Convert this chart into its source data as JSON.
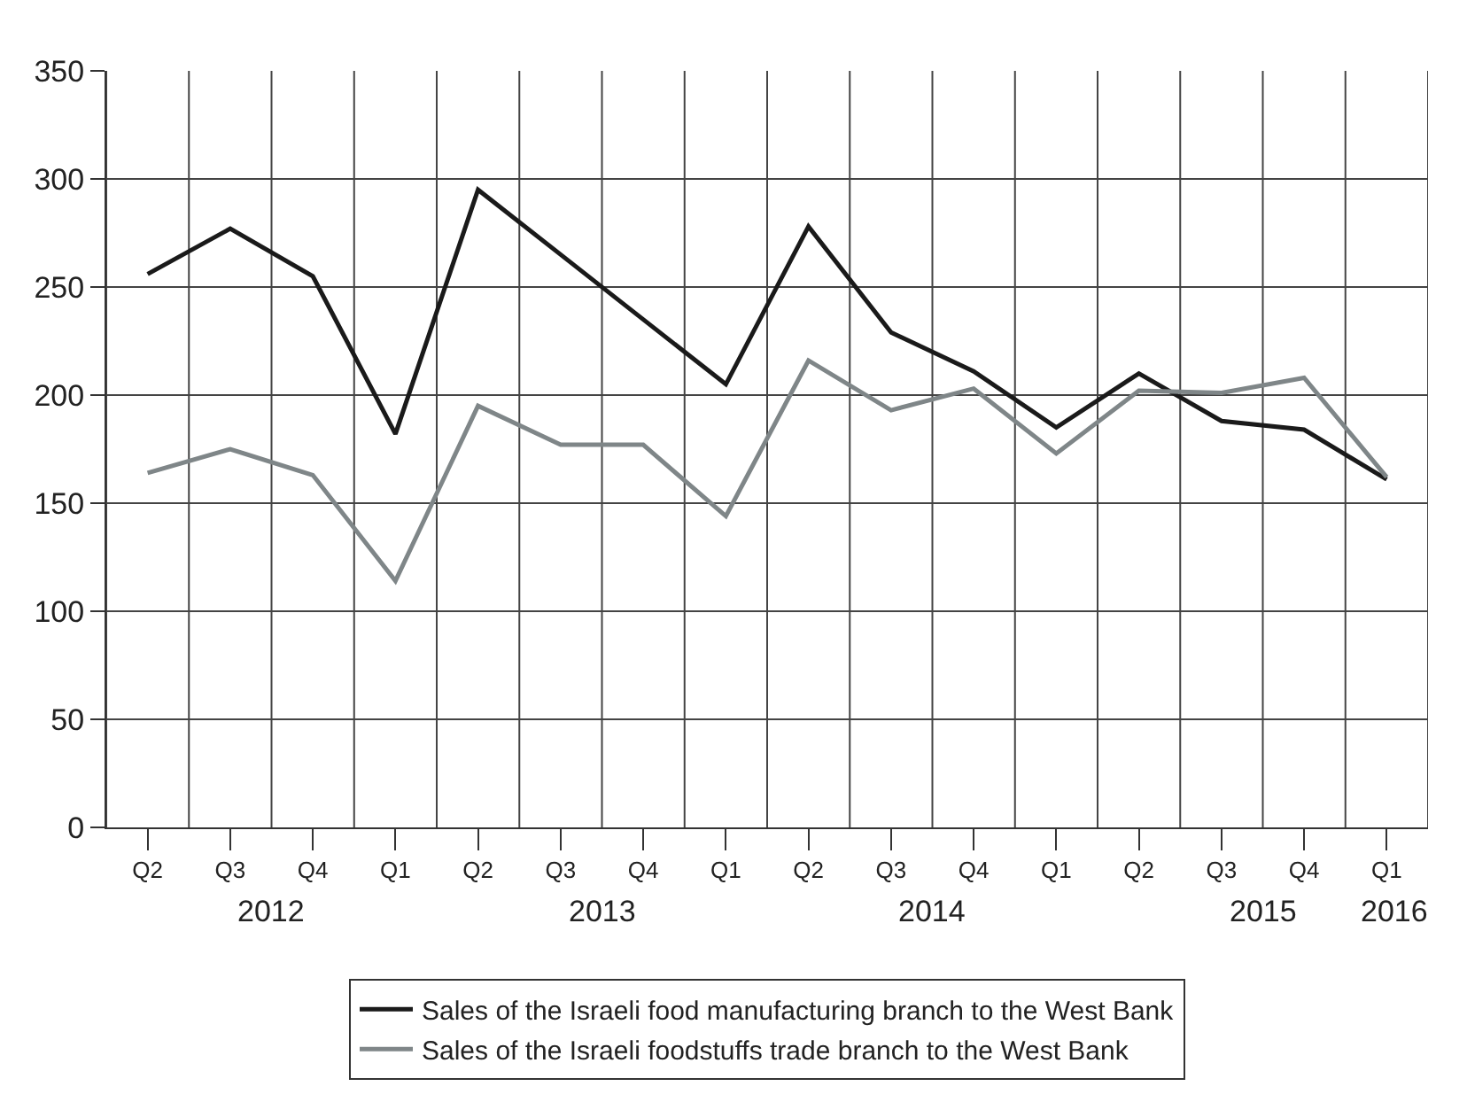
{
  "chart_data": {
    "type": "line",
    "categories": [
      "Q2",
      "Q3",
      "Q4",
      "Q1",
      "Q2",
      "Q3",
      "Q4",
      "Q1",
      "Q2",
      "Q3",
      "Q4",
      "Q1",
      "Q2",
      "Q3",
      "Q4",
      "Q1"
    ],
    "series": [
      {
        "name": "Sales of the Israeli food manufacturing branch to the West Bank",
        "color": "#1a1a1a",
        "values": [
          256,
          277,
          255,
          182,
          295,
          265,
          235,
          205,
          278,
          229,
          211,
          185,
          210,
          188,
          184,
          161
        ]
      },
      {
        "name": "Sales of the Israeli foodstuffs trade branch to the West Bank",
        "color": "#7f8688",
        "values": [
          164,
          175,
          163,
          114,
          195,
          177,
          177,
          144,
          216,
          193,
          203,
          173,
          202,
          201,
          208,
          162
        ]
      }
    ],
    "annotations": [
      "2012",
      "2013",
      "2014",
      "2015",
      "2016"
    ],
    "ylim": [
      0,
      350
    ],
    "yticks": [
      0,
      50,
      100,
      150,
      200,
      250,
      300,
      350
    ],
    "grid": true,
    "legend": "bottom",
    "marker": "none",
    "line_style": "solid"
  }
}
